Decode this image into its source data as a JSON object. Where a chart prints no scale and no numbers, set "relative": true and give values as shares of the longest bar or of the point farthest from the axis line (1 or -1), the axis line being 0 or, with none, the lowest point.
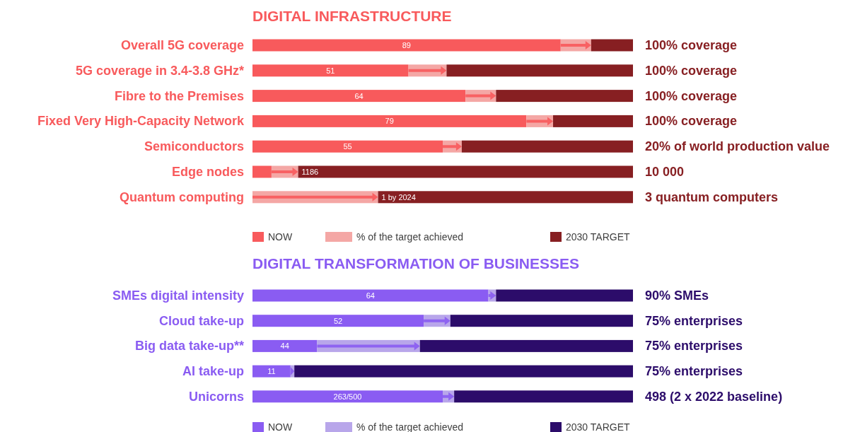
{
  "chart_data": [
    {
      "type": "bar",
      "title": "DIGITAL INFRASTRUCTURE",
      "orientation": "horizontal",
      "stacked": true,
      "relative": true,
      "legend": "bottom",
      "categories": [
        "Overall 5G coverage",
        "5G coverage in 3.4-3.8 GHz*",
        "Fibre to the Premises",
        "Fixed Very High-Capacity Network",
        "Semiconductors",
        "Edge nodes",
        "Quantum computing"
      ],
      "series": [
        {
          "name": "NOW",
          "color": "#f85a5c",
          "values": [
            0.81,
            0.41,
            0.56,
            0.72,
            0.5,
            0.05,
            null
          ]
        },
        {
          "name": "% of the target achieved",
          "color": "#f4a7a5",
          "values": [
            0.08,
            0.1,
            0.08,
            0.07,
            0.05,
            0.07,
            0.33
          ]
        },
        {
          "name": "2030 TARGET",
          "color": "#871f22",
          "values": [
            0.11,
            0.49,
            0.36,
            0.21,
            0.45,
            0.88,
            0.67
          ]
        }
      ],
      "annotations": [
        "100% coverage",
        "100% coverage",
        "100% coverage",
        "100% coverage",
        "20% of world production value",
        "10 000",
        "3 quantum computers",
        "89",
        "51",
        "64",
        "79",
        "55",
        "1186",
        "1 by 2024"
      ]
    },
    {
      "type": "bar",
      "title": "DIGITAL TRANSFORMATION OF BUSINESSES",
      "orientation": "horizontal",
      "stacked": true,
      "relative": true,
      "legend": "bottom",
      "categories": [
        "SMEs digital intensity",
        "Cloud take-up",
        "Big data take-up**",
        "AI take-up",
        "Unicorns"
      ],
      "series": [
        {
          "name": "NOW",
          "color": "#8a5cf2",
          "values": [
            0.62,
            0.45,
            0.17,
            0.1,
            0.5
          ]
        },
        {
          "name": "% of the target achieved",
          "color": "#b8a6ea",
          "values": [
            0.02,
            0.07,
            0.27,
            0.01,
            0.03
          ]
        },
        {
          "name": "2030 TARGET",
          "color": "#2c0c6a",
          "values": [
            0.36,
            0.48,
            0.56,
            0.89,
            0.47
          ]
        }
      ],
      "annotations": [
        "90% SMEs",
        "75% enterprises",
        "75% enterprises",
        "75% enterprises",
        "498 (2 x 2022 baseline)",
        "64",
        "52",
        "44",
        "11",
        "263/500"
      ]
    }
  ]
}
